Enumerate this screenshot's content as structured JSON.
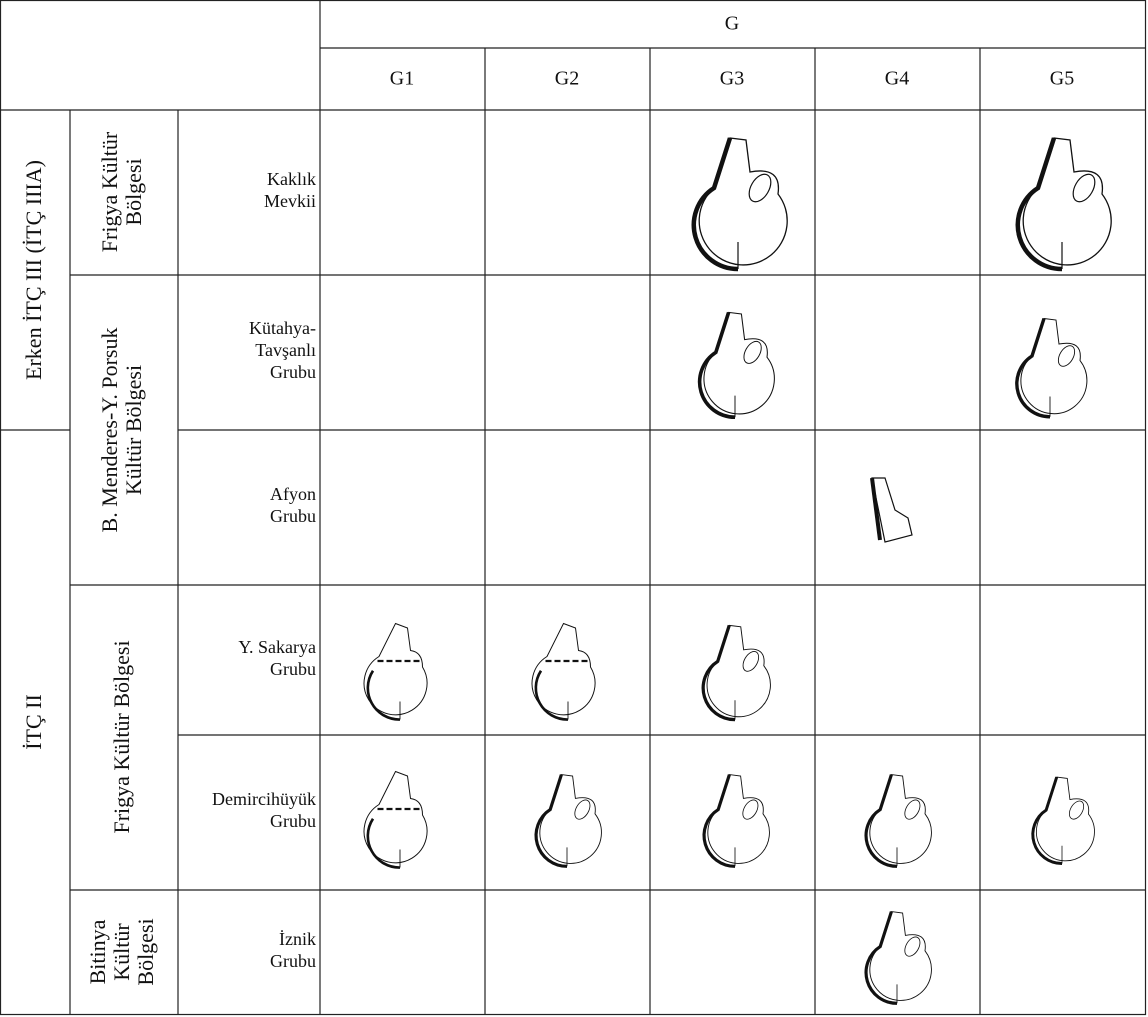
{
  "header": {
    "group": "G",
    "columns": [
      "G1",
      "G2",
      "G3",
      "G4",
      "G5"
    ]
  },
  "periods": [
    "Erken İTÇ III (İTÇ IIIA)",
    "İTÇ II"
  ],
  "regions": [
    [
      "Frigya Kültür",
      "Bölgesi"
    ],
    [
      "B. Menderes-Y. Porsuk",
      "Kültür Bölgesi"
    ],
    [
      "Frigya Kültür Bölgesi"
    ],
    [
      "Bitinya",
      "Kültür",
      "Bölgesi"
    ]
  ],
  "sites": [
    [
      "Kaklık",
      "Mevkii"
    ],
    [
      "Kütahya-",
      "Tavşanlı",
      "Grubu"
    ],
    [
      "Afyon",
      "Grubu"
    ],
    [
      "Y. Sakarya",
      "Grubu"
    ],
    [
      "Demircihüyük",
      "Grubu"
    ],
    [
      "İznik",
      "Grubu"
    ]
  ]
}
